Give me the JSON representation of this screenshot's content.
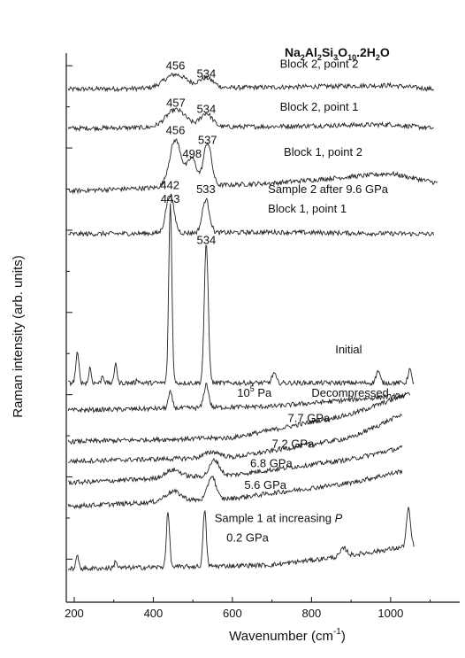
{
  "chart_data": {
    "type": "line",
    "title_parts": {
      "formula": [
        {
          "t": "Na",
          "sub": false
        },
        {
          "t": "2",
          "sub": true
        },
        {
          "t": "Al",
          "sub": false
        },
        {
          "t": "2",
          "sub": true
        },
        {
          "t": "Si",
          "sub": false
        },
        {
          "t": "3",
          "sub": true
        },
        {
          "t": "O",
          "sub": false
        },
        {
          "t": "10",
          "sub": true
        },
        {
          "t": ".2H",
          "sub": false
        },
        {
          "t": "2",
          "sub": true
        },
        {
          "t": "O",
          "sub": false
        }
      ]
    },
    "xlabel": "Wavenumber (cm",
    "xlabel_sup": "-1",
    "xlabel_close": ")",
    "ylabel": "Raman intensity (arb. units)",
    "xlim": [
      180,
      1130
    ],
    "xticks": [
      "200",
      "400",
      "600",
      "800",
      "1000"
    ],
    "xtick_values": [
      200,
      400,
      600,
      800,
      1000
    ],
    "series": [
      {
        "name": "Block 2, point 2",
        "offset": 11.6,
        "peaks": [
          [
            456,
            0.35,
            28
          ],
          [
            534,
            0.25,
            18
          ]
        ],
        "base": [
          [
            185,
            0.0
          ],
          [
            700,
            0.05
          ],
          [
            1000,
            0.1
          ],
          [
            1110,
            0.0
          ]
        ]
      },
      {
        "name": "Block 2, point 1",
        "offset": 10.6,
        "peaks": [
          [
            457,
            0.45,
            25
          ],
          [
            534,
            0.35,
            15
          ]
        ],
        "base": [
          [
            185,
            0.0
          ],
          [
            700,
            0.05
          ],
          [
            1000,
            0.1
          ],
          [
            1110,
            0.0
          ]
        ]
      },
      {
        "name": "Block 1, point 2",
        "offset": 9.0,
        "peaks": [
          [
            456,
            1.2,
            15
          ],
          [
            498,
            0.7,
            12
          ],
          [
            537,
            1.1,
            10
          ]
        ],
        "base": [
          [
            185,
            0.0
          ],
          [
            700,
            0.2
          ],
          [
            1000,
            0.45
          ],
          [
            1120,
            0.2
          ]
        ]
      },
      {
        "name": "Sample 2 after 9.6 GPa Block 1, point 1",
        "offset": 7.9,
        "peaks": [
          [
            442,
            1.0,
            10
          ],
          [
            533,
            0.85,
            9
          ]
        ],
        "base": [
          [
            185,
            0.0
          ],
          [
            700,
            0.05
          ],
          [
            1110,
            0.0
          ]
        ]
      },
      {
        "name": "Initial",
        "offset": 4.1,
        "peaks": [
          [
            208,
            0.75,
            4
          ],
          [
            240,
            0.4,
            3
          ],
          [
            272,
            0.2,
            3
          ],
          [
            305,
            0.55,
            3
          ],
          [
            360,
            0.1,
            3
          ],
          [
            443,
            4.6,
            4
          ],
          [
            534,
            3.55,
            5
          ],
          [
            705,
            0.25,
            5
          ],
          [
            968,
            0.3,
            5
          ],
          [
            1048,
            0.35,
            4
          ]
        ],
        "base": [
          [
            185,
            0.0
          ],
          [
            1060,
            0.0
          ]
        ]
      },
      {
        "name": "Decompressed",
        "offset": 3.4,
        "peaks": [
          [
            443,
            0.4,
            5
          ],
          [
            534,
            0.6,
            6
          ]
        ],
        "base": [
          [
            185,
            0.0
          ],
          [
            700,
            0.1
          ],
          [
            1050,
            0.4
          ]
        ]
      },
      {
        "name": "7.7 GPa",
        "offset": 2.6,
        "peaks": [],
        "base": [
          [
            185,
            0.0
          ],
          [
            600,
            0.1
          ],
          [
            900,
            0.7
          ],
          [
            1040,
            1.2
          ]
        ]
      },
      {
        "name": "7.2 GPa",
        "offset": 2.1,
        "peaks": [
          [
            550,
            0.15,
            20
          ]
        ],
        "base": [
          [
            185,
            0.0
          ],
          [
            600,
            0.1
          ],
          [
            900,
            0.6
          ],
          [
            1030,
            1.2
          ]
        ]
      },
      {
        "name": "6.8 GPa",
        "offset": 1.55,
        "peaks": [
          [
            450,
            0.2,
            20
          ],
          [
            555,
            0.4,
            12
          ]
        ],
        "base": [
          [
            185,
            0.0
          ],
          [
            600,
            0.2
          ],
          [
            900,
            0.6
          ],
          [
            1030,
            0.9
          ]
        ]
      },
      {
        "name": "5.6 GPa",
        "offset": 0.95,
        "peaks": [
          [
            450,
            0.25,
            20
          ],
          [
            548,
            0.6,
            10
          ]
        ],
        "base": [
          [
            185,
            0.0
          ],
          [
            600,
            0.2
          ],
          [
            900,
            0.6
          ],
          [
            1030,
            0.9
          ]
        ]
      },
      {
        "name": "0.2 GPa",
        "offset": -0.65,
        "peaks": [
          [
            208,
            0.3,
            4
          ],
          [
            305,
            0.2,
            3
          ],
          [
            437,
            1.4,
            4
          ],
          [
            530,
            1.45,
            4
          ],
          [
            882,
            0.2,
            8
          ],
          [
            1045,
            0.95,
            5
          ]
        ],
        "base": [
          [
            185,
            0.0
          ],
          [
            700,
            0.1
          ],
          [
            900,
            0.35
          ],
          [
            1060,
            0.6
          ]
        ]
      }
    ],
    "annotations": [
      {
        "text": "456",
        "x": 456,
        "y": 12.1
      },
      {
        "text": "534",
        "x": 534,
        "y": 11.9
      },
      {
        "text": "457",
        "x": 457,
        "y": 11.15
      },
      {
        "text": "534",
        "x": 534,
        "y": 11.0
      },
      {
        "text": "456",
        "x": 456,
        "y": 10.45
      },
      {
        "text": "498",
        "x": 498,
        "y": 9.85
      },
      {
        "text": "537",
        "x": 537,
        "y": 10.2
      },
      {
        "text": "442",
        "x": 442,
        "y": 9.05
      },
      {
        "text": "533",
        "x": 533,
        "y": 8.95
      },
      {
        "text": "443",
        "x": 443,
        "y": 8.7
      },
      {
        "text": "534",
        "x": 534,
        "y": 7.65
      }
    ],
    "series_labels": [
      {
        "text": "Block 2, point 2",
        "x": 720,
        "y": 12.15
      },
      {
        "text": "Block 2, point 1",
        "x": 720,
        "y": 11.05
      },
      {
        "text": "Block 1, point 2",
        "x": 730,
        "y": 9.9
      },
      {
        "text": "Sample 2 after 9.6 GPa",
        "x": 690,
        "y": 8.95
      },
      {
        "text": "Block 1, point 1",
        "x": 690,
        "y": 8.45
      },
      {
        "text": "Initial",
        "x": 860,
        "y": 4.85
      },
      {
        "text": "Decompressed",
        "x": 800,
        "y": 3.75
      },
      {
        "text": "7.7 GPa",
        "x": 740,
        "y": 3.1
      },
      {
        "text": "7.2 GPa",
        "x": 700,
        "y": 2.45
      },
      {
        "text": "6.8 GPa",
        "x": 645,
        "y": 1.95
      },
      {
        "text": "5.6 GPa",
        "x": 630,
        "y": 1.4
      },
      {
        "text": "0.2 GPa",
        "x": 585,
        "y": 0.05
      }
    ],
    "pressure_label": {
      "base": "10",
      "sup": "5",
      "unit": " Pa",
      "x": 612,
      "y": 3.75
    },
    "sample1_label": {
      "text": "Sample 1 at increasing ",
      "italic": "P",
      "x": 555,
      "y": 0.55
    }
  }
}
